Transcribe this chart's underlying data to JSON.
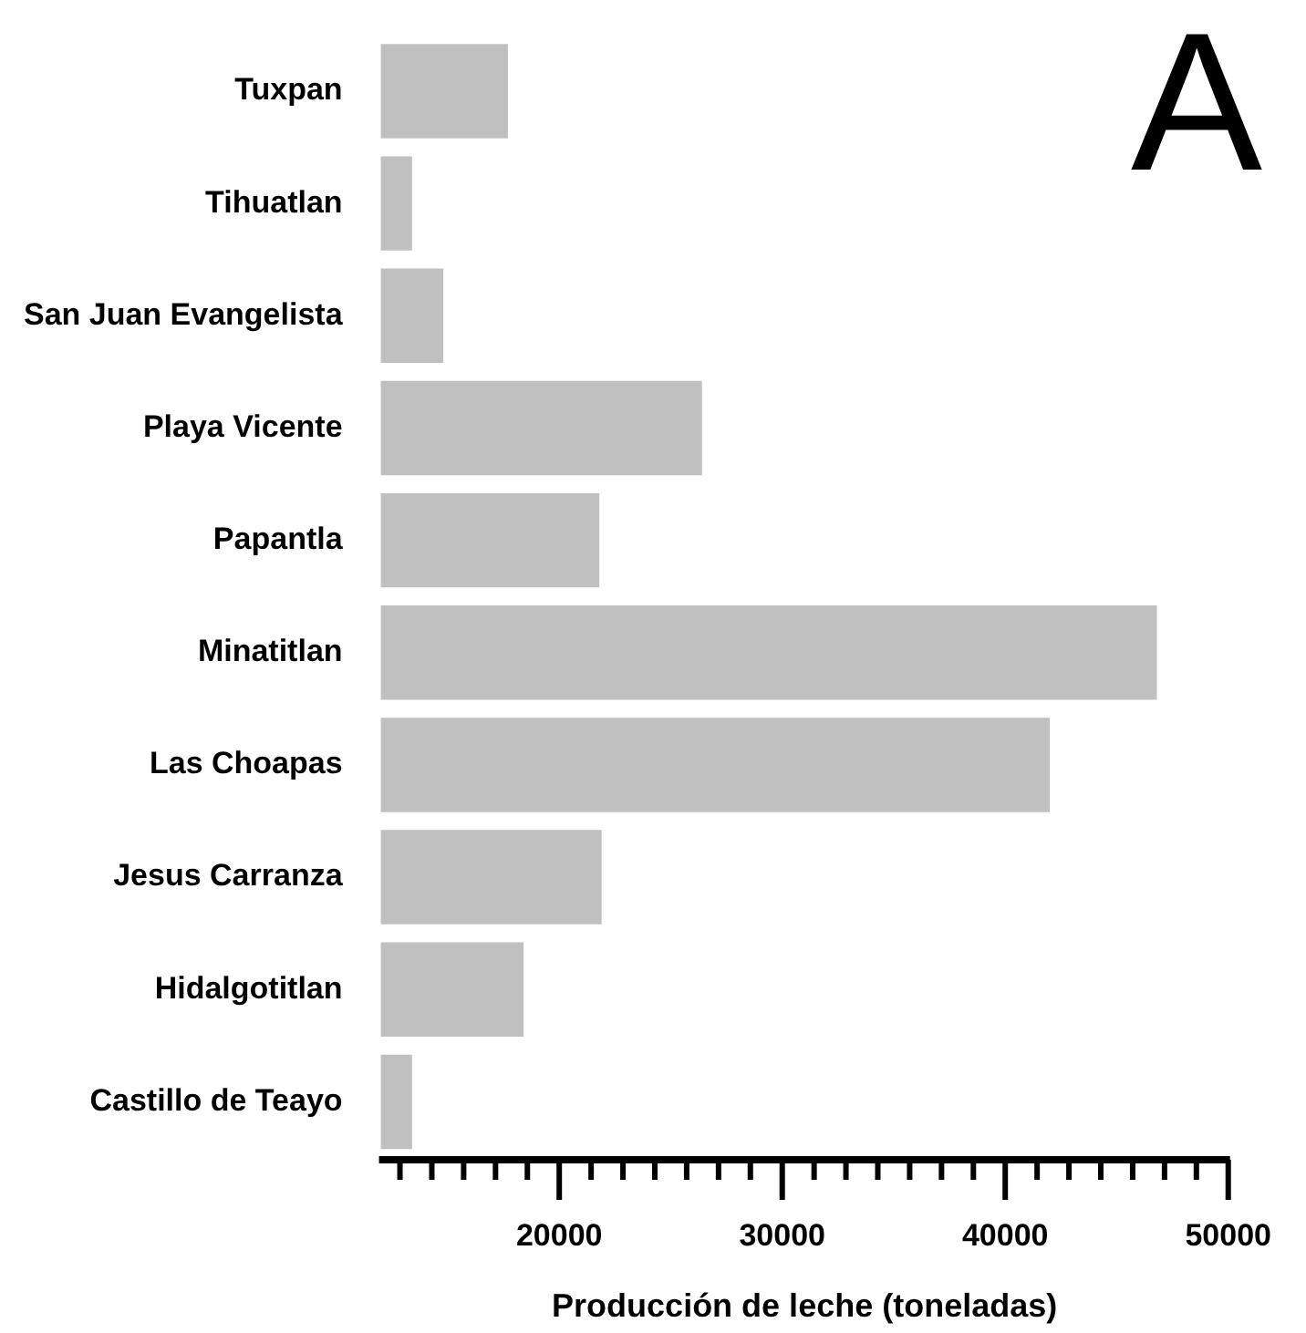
{
  "chart_data": {
    "type": "bar",
    "orientation": "horizontal",
    "categories": [
      "Tuxpan",
      "Tihuatlan",
      "San Juan Evangelista",
      "Playa Vicente",
      "Papantla",
      "Minatitlan",
      "Las Choapas",
      "Jesus Carranza",
      "Hidalgotitlan",
      "Castillo de Teayo"
    ],
    "values": [
      17700,
      13400,
      14800,
      26400,
      21800,
      46800,
      42000,
      21900,
      18400,
      13400
    ],
    "color": "#c0c0c0",
    "xlim": [
      12000,
      50000
    ],
    "xticks": [
      {
        "value": 12857,
        "label": null
      },
      {
        "value": 14286,
        "label": null
      },
      {
        "value": 15714,
        "label": null
      },
      {
        "value": 17143,
        "label": null
      },
      {
        "value": 18571,
        "label": null
      },
      20000,
      {
        "value": 21429,
        "label": null
      },
      {
        "value": 22857,
        "label": null
      },
      {
        "value": 24286,
        "label": null
      },
      {
        "value": 25714,
        "label": null
      },
      {
        "value": 27143,
        "label": null
      },
      {
        "value": 28571,
        "label": null
      },
      30000,
      {
        "value": 31429,
        "label": null
      },
      {
        "value": 32857,
        "label": null
      },
      {
        "value": 34286,
        "label": null
      },
      {
        "value": 35714,
        "label": null
      },
      {
        "value": 37143,
        "label": null
      },
      {
        "value": 38571,
        "label": null
      },
      40000,
      {
        "value": 41429,
        "label": null
      },
      {
        "value": 42857,
        "label": null
      },
      {
        "value": 44286,
        "label": null
      },
      {
        "value": 45714,
        "label": null
      },
      {
        "value": 47143,
        "label": null
      },
      {
        "value": 48571,
        "label": null
      },
      50000
    ],
    "xlabel": "Producción de leche (toneladas)",
    "annotations": [
      "A"
    ]
  }
}
